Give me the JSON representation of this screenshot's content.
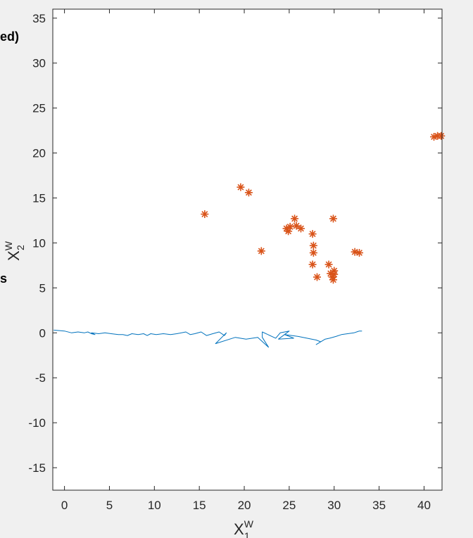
{
  "chart_data": {
    "type": "scatter",
    "xlim": [
      -1.3,
      42
    ],
    "ylim": [
      -17.5,
      36
    ],
    "x_ticks": [
      0,
      5,
      10,
      15,
      20,
      25,
      30,
      35,
      40
    ],
    "y_ticks": [
      -15,
      -10,
      -5,
      0,
      5,
      10,
      15,
      20,
      25,
      30,
      35
    ],
    "x_tick_labels": [
      "0",
      "5",
      "10",
      "15",
      "20",
      "25",
      "30",
      "35",
      "40"
    ],
    "y_tick_labels": [
      "-15",
      "-10",
      "-5",
      "0",
      "5",
      "10",
      "15",
      "20",
      "25",
      "30",
      "35"
    ],
    "xlabel": {
      "base": "X",
      "sup": "W",
      "sub": "1"
    },
    "ylabel": {
      "base": "X",
      "sup": "W",
      "sub": "2"
    },
    "grid": false,
    "series": [
      {
        "type": "line",
        "color": "#0072BD",
        "points": [
          [
            -1.2,
            0.3
          ],
          [
            0.0,
            0.2
          ],
          [
            0.8,
            0.0
          ],
          [
            1.5,
            0.1
          ],
          [
            2.2,
            0.0
          ],
          [
            2.6,
            0.1
          ],
          [
            3.0,
            -0.1
          ],
          [
            3.4,
            -0.2
          ],
          [
            3.0,
            0.0
          ],
          [
            3.8,
            -0.1
          ],
          [
            4.5,
            0.0
          ],
          [
            5.2,
            -0.1
          ],
          [
            6.0,
            -0.2
          ],
          [
            6.5,
            -0.2
          ],
          [
            7.0,
            -0.3
          ],
          [
            7.5,
            -0.1
          ],
          [
            8.2,
            -0.2
          ],
          [
            8.8,
            -0.1
          ],
          [
            9.2,
            -0.3
          ],
          [
            9.6,
            -0.1
          ],
          [
            10.2,
            -0.2
          ],
          [
            11.0,
            -0.1
          ],
          [
            11.8,
            -0.2
          ],
          [
            12.5,
            -0.1
          ],
          [
            13.5,
            0.1
          ],
          [
            14.0,
            -0.2
          ],
          [
            14.5,
            -0.1
          ],
          [
            15.2,
            0.1
          ],
          [
            15.8,
            -0.3
          ],
          [
            16.5,
            -0.1
          ],
          [
            17.2,
            0.1
          ],
          [
            17.8,
            -0.3
          ],
          [
            18.0,
            0.0
          ],
          [
            16.8,
            -1.2
          ],
          [
            19.0,
            -0.5
          ],
          [
            20.2,
            -0.7
          ],
          [
            21.5,
            -0.5
          ],
          [
            22.7,
            -1.6
          ],
          [
            22.0,
            -0.5
          ],
          [
            22.0,
            0.1
          ],
          [
            23.5,
            -0.6
          ],
          [
            24.0,
            0.0
          ],
          [
            25.0,
            0.2
          ],
          [
            23.8,
            -0.7
          ],
          [
            25.5,
            -0.6
          ],
          [
            24.5,
            -0.2
          ],
          [
            26.0,
            -0.4
          ],
          [
            27.5,
            -0.7
          ],
          [
            28.0,
            -0.8
          ],
          [
            28.5,
            -1.0
          ],
          [
            28.0,
            -1.3
          ],
          [
            29.0,
            -0.7
          ],
          [
            29.5,
            -0.6
          ],
          [
            30.2,
            -0.4
          ],
          [
            30.8,
            -0.2
          ],
          [
            31.5,
            -0.1
          ],
          [
            32.2,
            0.0
          ],
          [
            32.8,
            0.2
          ],
          [
            33.1,
            0.2
          ]
        ]
      },
      {
        "type": "scatter",
        "marker": "asterisk",
        "color": "#D95319",
        "points": [
          [
            15.6,
            13.2
          ],
          [
            19.6,
            16.2
          ],
          [
            20.5,
            15.6
          ],
          [
            21.9,
            9.1
          ],
          [
            24.7,
            11.6
          ],
          [
            24.9,
            11.3
          ],
          [
            25.1,
            11.8
          ],
          [
            25.6,
            12.7
          ],
          [
            25.8,
            11.9
          ],
          [
            26.3,
            11.6
          ],
          [
            27.6,
            11.0
          ],
          [
            27.7,
            9.7
          ],
          [
            27.7,
            8.9
          ],
          [
            27.6,
            7.6
          ],
          [
            28.1,
            6.2
          ],
          [
            29.4,
            7.6
          ],
          [
            29.6,
            6.6
          ],
          [
            29.8,
            6.2
          ],
          [
            29.9,
            5.9
          ],
          [
            30.0,
            6.5
          ],
          [
            30.0,
            6.9
          ],
          [
            29.9,
            12.7
          ],
          [
            32.3,
            9.0
          ],
          [
            32.8,
            8.9
          ],
          [
            41.1,
            21.8
          ],
          [
            41.5,
            21.9
          ],
          [
            41.9,
            21.9
          ]
        ]
      }
    ]
  },
  "page_fragments": {
    "left_top": "ed)",
    "left_mid": "s"
  }
}
